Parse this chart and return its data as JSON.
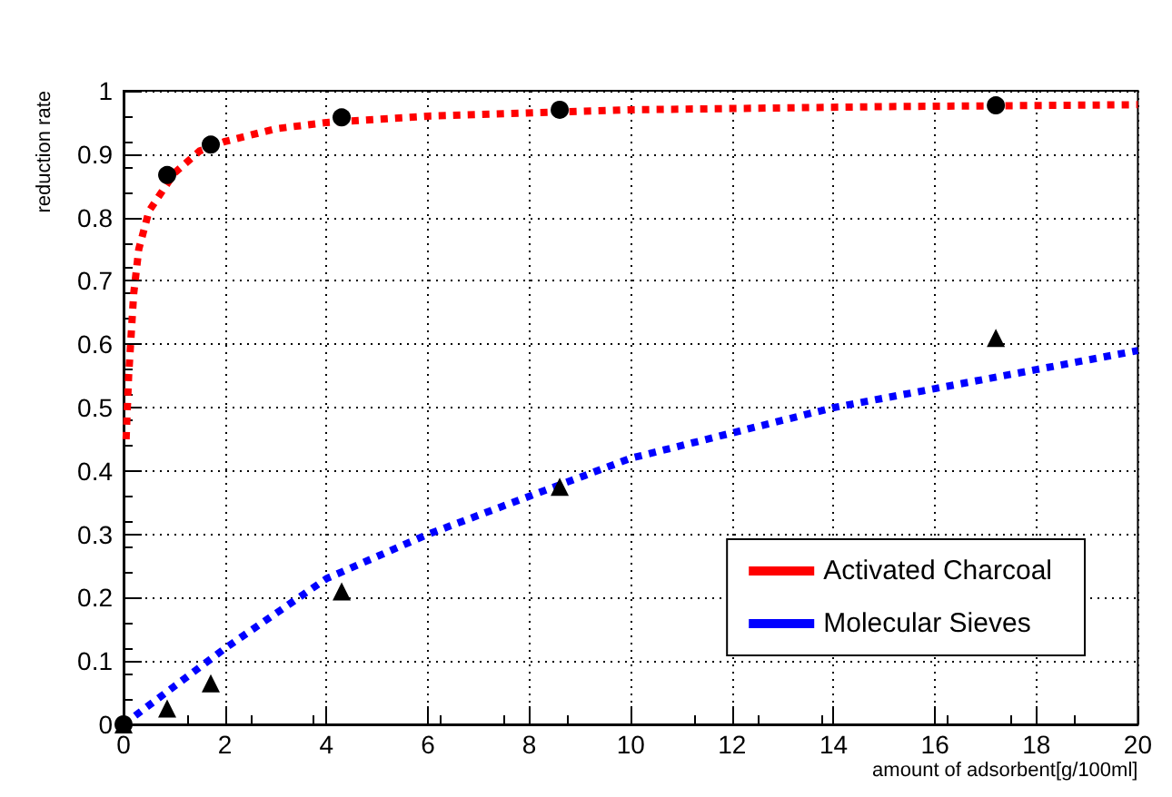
{
  "chart_data": {
    "type": "scatter",
    "xlabel": "amount of adsorbent[g/100ml]",
    "ylabel": "reduction rate",
    "xlim": [
      0,
      20
    ],
    "xticks": [
      0,
      2,
      4,
      6,
      8,
      10,
      12,
      14,
      16,
      18,
      20
    ],
    "ylim": [
      0,
      1
    ],
    "yticks": [
      0,
      0.1,
      0.2,
      0.3,
      0.4,
      0.5,
      0.6,
      0.7,
      0.8,
      0.9,
      1
    ],
    "grid": true,
    "legend": "bottom right",
    "series": [
      {
        "type": "line",
        "name": "Activated Charcoal",
        "color": "#ff0000",
        "line_style": "dotted",
        "marker": "none",
        "x": [
          0.05,
          0.1,
          0.2,
          0.3,
          0.5,
          1,
          1.5,
          2,
          3,
          4,
          6,
          10,
          15,
          20
        ],
        "values": [
          0.45,
          0.55,
          0.68,
          0.75,
          0.81,
          0.87,
          0.905,
          0.92,
          0.94,
          0.95,
          0.96,
          0.97,
          0.975,
          0.978
        ]
      },
      {
        "type": "line",
        "name": "Molecular Sieves",
        "color": "#0000ff",
        "line_style": "dotted",
        "marker": "none",
        "x": [
          0,
          1,
          2,
          4,
          6,
          8,
          10,
          12,
          14,
          16,
          18,
          20
        ],
        "values": [
          0,
          0.06,
          0.12,
          0.23,
          0.3,
          0.36,
          0.42,
          0.46,
          0.5,
          0.53,
          0.56,
          0.59
        ]
      },
      {
        "type": "scatter",
        "color": "#000000",
        "marker": "circle",
        "x": [
          0,
          0.86,
          1.72,
          4.3,
          8.6,
          17.2
        ],
        "values": [
          0,
          0.867,
          0.915,
          0.958,
          0.97,
          0.977
        ]
      },
      {
        "type": "scatter",
        "color": "#000000",
        "marker": "triangle",
        "x": [
          0,
          0.86,
          1.72,
          4.3,
          8.6,
          17.2
        ],
        "values": [
          0,
          0.025,
          0.065,
          0.21,
          0.375,
          0.61
        ]
      }
    ]
  }
}
